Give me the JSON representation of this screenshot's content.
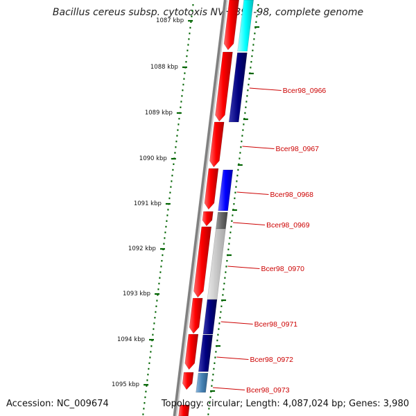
{
  "title": "Bacillus cereus subsp. cytotoxis NVH 391-98, complete genome",
  "accession": "Accession: NC_009674",
  "summary": "Topology: circular; Length: 4,087,024 bp; Genes: 3,980",
  "ticks": [
    "1087 kbp",
    "1088 kbp",
    "1089 kbp",
    "1090 kbp",
    "1091 kbp",
    "1092 kbp",
    "1093 kbp",
    "1094 kbp",
    "1095 kbp"
  ],
  "gene_labels": [
    "Bcer98_0966",
    "Bcer98_0967",
    "Bcer98_0968",
    "Bcer98_0969",
    "Bcer98_0970",
    "Bcer98_0971",
    "Bcer98_0972",
    "Bcer98_0973"
  ],
  "colors": {
    "forward_genes": "#ff0000",
    "cyan_gene": "#00ffff",
    "navy_gene": "#000080",
    "blue_gene": "#0000ff",
    "dark_gray_gene": "#666666",
    "light_gray_gene": "#c8c8c8",
    "steel_gene": "#4682b4",
    "tick_color": "#006400",
    "label_color": "#cc0000",
    "backbone": "#808080"
  }
}
